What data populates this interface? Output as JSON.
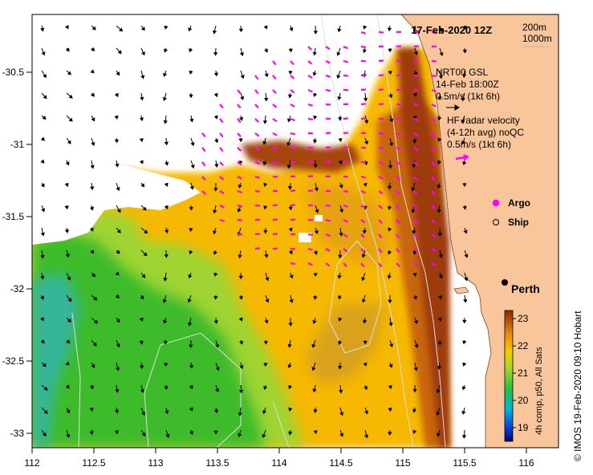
{
  "title": "17-Feb-2020 12Z",
  "depth_legend": [
    "200m",
    "1000m"
  ],
  "model": {
    "name": "NRT00 GSL",
    "time": "14-Feb 18:00Z",
    "scale": "0.5m/s (1kt 6h)"
  },
  "radar": {
    "line1": "HF radar velocity",
    "line2": "(4-12h avg) noQC",
    "scale": "0.5m/s (1kt 6h)"
  },
  "markers": {
    "argo": "Argo",
    "ship": "Ship"
  },
  "city": "Perth",
  "colorbar": {
    "label": "4h comp, p50, All Sats",
    "ticks": [
      "19",
      "20",
      "21",
      "22",
      "23"
    ]
  },
  "credit": "© IMOS 19-Feb-2020 09:10 Hobart",
  "axes": {
    "x_ticks": [
      "112",
      "112.5",
      "113",
      "113.5",
      "114",
      "114.5",
      "115",
      "115.5",
      "116"
    ],
    "y_ticks": [
      "-30.5",
      "-31",
      "-31.5",
      "-32",
      "-32.5",
      "-33"
    ]
  },
  "colors": {
    "land": "#f9c59b",
    "radar_arrow": "#ff00ff",
    "model_arrow": "#000000",
    "sst_cool": "#2fb52f",
    "sst_warm": "#f7b500",
    "sst_hot": "#a0400c"
  }
}
